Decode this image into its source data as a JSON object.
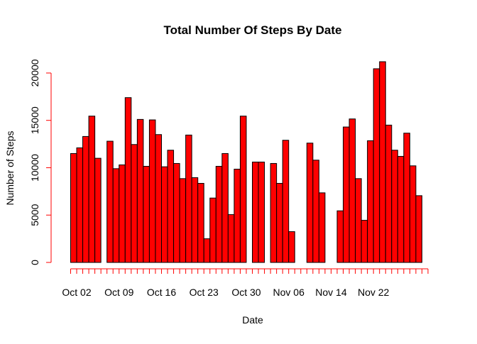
{
  "chart_data": {
    "type": "bar",
    "title": "Total Number Of Steps By Date",
    "xlabel": "Date",
    "ylabel": "Number of Steps",
    "ylim": [
      0,
      21194
    ],
    "yticks": [
      0,
      5000,
      10000,
      15000,
      20000
    ],
    "xtick_labels": [
      "Oct 02",
      "Oct 09",
      "Oct 16",
      "Oct 23",
      "Oct 30",
      "Nov 06",
      "Nov 14",
      "Nov 22"
    ],
    "bar_color": "#ff0000",
    "bar_border_color": "#000000",
    "axis_color": "#ff0000",
    "grid": false,
    "legend": "none",
    "categories": [
      "2012-10-01",
      "2012-10-02",
      "2012-10-03",
      "2012-10-04",
      "2012-10-05",
      "2012-10-06",
      "2012-10-07",
      "2012-10-08",
      "2012-10-09",
      "2012-10-10",
      "2012-10-11",
      "2012-10-12",
      "2012-10-13",
      "2012-10-14",
      "2012-10-15",
      "2012-10-16",
      "2012-10-17",
      "2012-10-18",
      "2012-10-19",
      "2012-10-20",
      "2012-10-21",
      "2012-10-22",
      "2012-10-23",
      "2012-10-24",
      "2012-10-25",
      "2012-10-26",
      "2012-10-27",
      "2012-10-28",
      "2012-10-29",
      "2012-10-30",
      "2012-10-31",
      "2012-11-01",
      "2012-11-02",
      "2012-11-03",
      "2012-11-04",
      "2012-11-05",
      "2012-11-06",
      "2012-11-07",
      "2012-11-08",
      "2012-11-09",
      "2012-11-10",
      "2012-11-11",
      "2012-11-12",
      "2012-11-13",
      "2012-11-14",
      "2012-11-15",
      "2012-11-16",
      "2012-11-17",
      "2012-11-18",
      "2012-11-19",
      "2012-11-20",
      "2012-11-21",
      "2012-11-22",
      "2012-11-23",
      "2012-11-24",
      "2012-11-25",
      "2012-11-26",
      "2012-11-27",
      "2012-11-28",
      "2012-11-29"
    ],
    "values": [
      11500,
      12100,
      13300,
      15450,
      11000,
      0,
      12800,
      9900,
      10300,
      17400,
      12450,
      15100,
      10150,
      15050,
      13500,
      10100,
      11850,
      10450,
      8850,
      13450,
      8950,
      8350,
      2500,
      6800,
      10150,
      11500,
      5050,
      9850,
      15450,
      0,
      10600,
      10600,
      0,
      10450,
      8350,
      12900,
      3250,
      0,
      0,
      12600,
      10800,
      7350,
      0,
      0,
      5450,
      14300,
      15150,
      8850,
      4450,
      12850,
      20450,
      21194,
      14500,
      11850,
      11200,
      13650,
      10200,
      7050,
      0,
      0
    ]
  }
}
